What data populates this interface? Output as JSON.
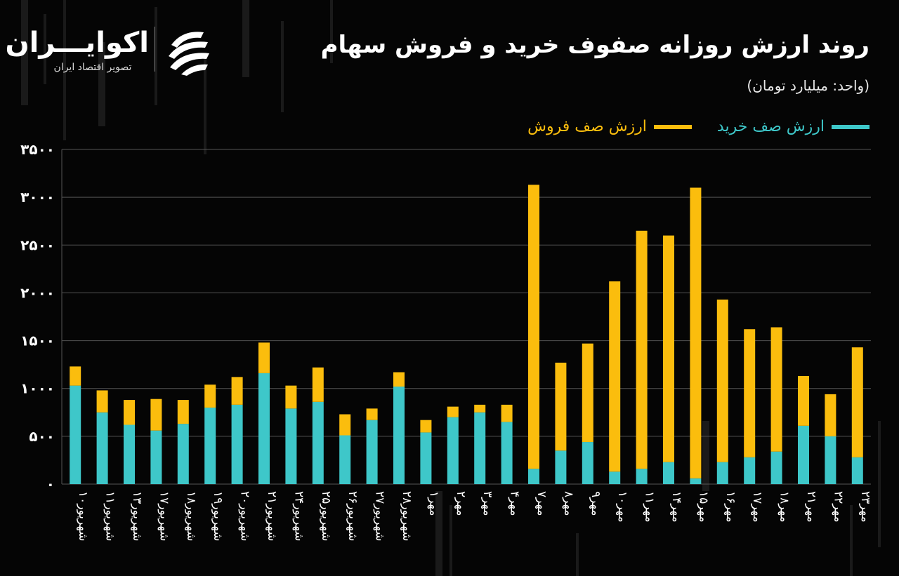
{
  "header": {
    "title": "روند ارزش روزانه صفوف خرید و فروش سهام",
    "subtitle": "(واحد: میلیارد تومان)"
  },
  "logo": {
    "name": "اکوایـــران",
    "tagline": "تصویر اقتصاد ایران"
  },
  "colors": {
    "buy": "#3ec7c9",
    "sell": "#fbbd0d",
    "grid": "#555555",
    "background": "#050505",
    "text": "#ffffff"
  },
  "chart_data": {
    "type": "bar",
    "stacked": true,
    "ylim": [
      0,
      3500
    ],
    "yticks": [
      "۰",
      "۵۰۰",
      "۱۰۰۰",
      "۱۵۰۰",
      "۲۰۰۰",
      "۲۵۰۰",
      "۳۰۰۰",
      "۳۵۰۰"
    ],
    "ytick_values": [
      0,
      500,
      1000,
      1500,
      2000,
      2500,
      3000,
      3500
    ],
    "grid": true,
    "legend_position": "top-right",
    "categories": [
      "شهریور۱۰",
      "شهریور۱۱",
      "شهریور۱۳",
      "شهریور۱۷",
      "شهریور۱۸",
      "شهریور۱۹",
      "شهریور۲۰",
      "شهریور۲۱",
      "شهریور۲۴",
      "شهریور۲۵",
      "شهریور۲۶",
      "شهریور۲۷",
      "شهریور۲۸",
      "مهر۱",
      "مهر۲",
      "مهر۳",
      "مهر۴",
      "مهر۷",
      "مهر۸",
      "مهر۹",
      "مهر۱۰",
      "مهر۱۱",
      "مهر۱۴",
      "مهر۱۵",
      "مهر۱۶",
      "مهر۱۷",
      "مهر۱۸",
      "مهر۲۱",
      "مهر۲۲",
      "مهر۲۳"
    ],
    "series": [
      {
        "name": "ارزش صف خرید",
        "values": [
          1030,
          750,
          620,
          560,
          630,
          800,
          830,
          1160,
          790,
          860,
          510,
          670,
          1020,
          540,
          700,
          750,
          650,
          160,
          350,
          440,
          130,
          160,
          230,
          60,
          230,
          280,
          340,
          610,
          500,
          280
        ]
      },
      {
        "name": "ارزش صف فروش",
        "values": [
          200,
          230,
          260,
          330,
          250,
          240,
          290,
          320,
          240,
          360,
          220,
          120,
          150,
          130,
          110,
          80,
          180,
          2970,
          920,
          1030,
          1990,
          2490,
          2370,
          3040,
          1700,
          1340,
          1300,
          520,
          440,
          1150
        ]
      }
    ]
  }
}
